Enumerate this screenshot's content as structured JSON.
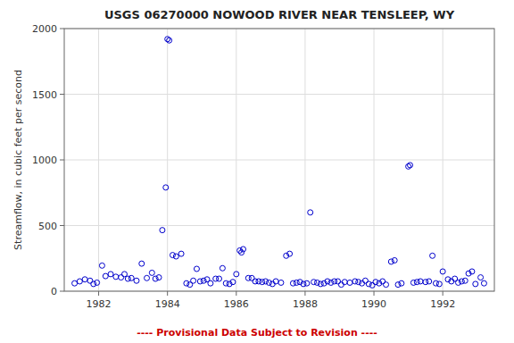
{
  "chart_data": {
    "type": "scatter",
    "title": "USGS 06270000 NOWOOD RIVER NEAR TENSLEEP, WY",
    "ylabel": "Streamflow, in cubic feet per second",
    "annotations": [
      {
        "text": "---- Provisional Data Subject to Revision ----",
        "color": "#cc0000"
      }
    ],
    "xlim": [
      1981.0,
      1993.5
    ],
    "ylim": [
      0,
      2000
    ],
    "xticks": [
      1982,
      1984,
      1986,
      1988,
      1990,
      1992
    ],
    "yticks": [
      0,
      500,
      1000,
      1500,
      2000
    ],
    "grid": true,
    "color": "#0000cc",
    "marker": "circle",
    "x": [
      1981.3,
      1981.45,
      1981.6,
      1981.75,
      1981.85,
      1981.95,
      1982.1,
      1982.2,
      1982.35,
      1982.5,
      1982.65,
      1982.75,
      1982.85,
      1982.95,
      1983.1,
      1983.25,
      1983.4,
      1983.55,
      1983.65,
      1983.75,
      1983.85,
      1983.95,
      1984.0,
      1984.05,
      1984.15,
      1984.25,
      1984.4,
      1984.55,
      1984.65,
      1984.75,
      1984.85,
      1984.95,
      1985.05,
      1985.15,
      1985.25,
      1985.4,
      1985.5,
      1985.6,
      1985.7,
      1985.8,
      1985.9,
      1986.0,
      1986.1,
      1986.15,
      1986.2,
      1986.35,
      1986.45,
      1986.55,
      1986.65,
      1986.75,
      1986.85,
      1986.95,
      1987.05,
      1987.15,
      1987.3,
      1987.45,
      1987.55,
      1987.65,
      1987.75,
      1987.85,
      1987.95,
      1988.05,
      1988.15,
      1988.25,
      1988.35,
      1988.45,
      1988.55,
      1988.65,
      1988.75,
      1988.85,
      1988.95,
      1989.05,
      1989.15,
      1989.3,
      1989.45,
      1989.55,
      1989.65,
      1989.75,
      1989.85,
      1989.95,
      1990.05,
      1990.15,
      1990.25,
      1990.35,
      1990.5,
      1990.6,
      1990.7,
      1990.8,
      1991.0,
      1991.05,
      1991.15,
      1991.25,
      1991.35,
      1991.5,
      1991.6,
      1991.7,
      1991.8,
      1991.9,
      1992.0,
      1992.15,
      1992.25,
      1992.35,
      1992.45,
      1992.55,
      1992.65,
      1992.75,
      1992.85,
      1992.95,
      1993.1,
      1993.2
    ],
    "values": [
      60,
      75,
      90,
      80,
      55,
      65,
      195,
      115,
      130,
      110,
      105,
      130,
      95,
      100,
      80,
      210,
      100,
      140,
      95,
      105,
      465,
      790,
      1920,
      1910,
      275,
      265,
      285,
      60,
      50,
      80,
      170,
      75,
      80,
      90,
      60,
      95,
      95,
      175,
      60,
      55,
      70,
      130,
      310,
      295,
      320,
      100,
      100,
      75,
      75,
      70,
      75,
      65,
      55,
      75,
      65,
      270,
      285,
      60,
      65,
      70,
      55,
      60,
      600,
      70,
      65,
      55,
      60,
      75,
      65,
      75,
      75,
      50,
      70,
      65,
      75,
      70,
      60,
      80,
      55,
      45,
      70,
      60,
      75,
      50,
      225,
      235,
      50,
      60,
      950,
      960,
      65,
      70,
      75,
      70,
      75,
      270,
      60,
      55,
      150,
      90,
      75,
      95,
      65,
      75,
      80,
      135,
      150,
      55,
      105,
      60
    ]
  }
}
